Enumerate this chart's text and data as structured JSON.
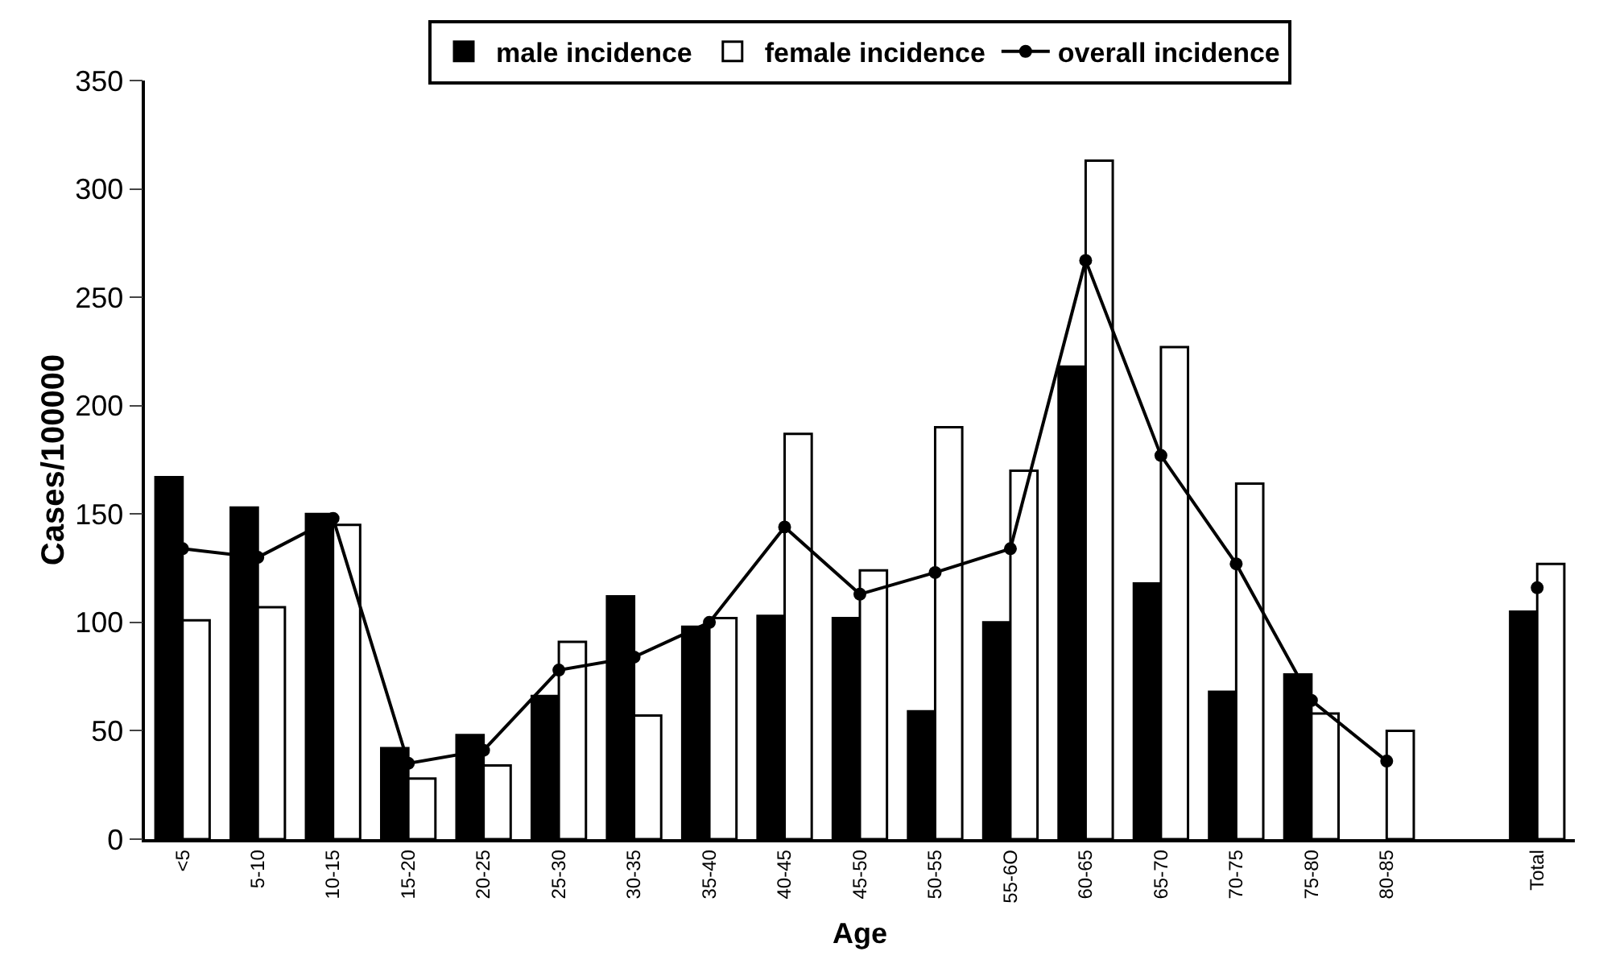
{
  "chart_data": {
    "type": "bar",
    "xlabel": "Age",
    "ylabel": "Cases/100000",
    "categories": [
      "<5",
      "5-10",
      "10-15",
      "15-20",
      "20-25",
      "25-30",
      "30-35",
      "35-40",
      "40-45",
      "45-50",
      "50-55",
      "55-6O",
      "60-65",
      "65-70",
      "70-75",
      "75-80",
      "80-85",
      null,
      "Total"
    ],
    "series": [
      {
        "name": "male incidence",
        "color": "#000000",
        "values": [
          167,
          153,
          150,
          42,
          48,
          66,
          112,
          98,
          103,
          102,
          59,
          100,
          218,
          118,
          68,
          76,
          null,
          null,
          105
        ]
      },
      {
        "name": "female incidence",
        "color": "#ffffff",
        "values": [
          101,
          107,
          145,
          28,
          34,
          91,
          57,
          102,
          187,
          124,
          190,
          170,
          313,
          227,
          164,
          58,
          50,
          null,
          127
        ]
      },
      {
        "name": "overall incidence",
        "type": "line",
        "color": "#000000",
        "marker": "circle",
        "values": [
          134,
          130,
          148,
          35,
          41,
          78,
          84,
          100,
          144,
          113,
          123,
          134,
          267,
          177,
          127,
          64,
          36,
          null,
          116
        ]
      }
    ],
    "ylim": [
      0,
      350
    ],
    "yticks": [
      0,
      50,
      100,
      150,
      200,
      250,
      300,
      350
    ],
    "grid": false,
    "legend": "top"
  }
}
